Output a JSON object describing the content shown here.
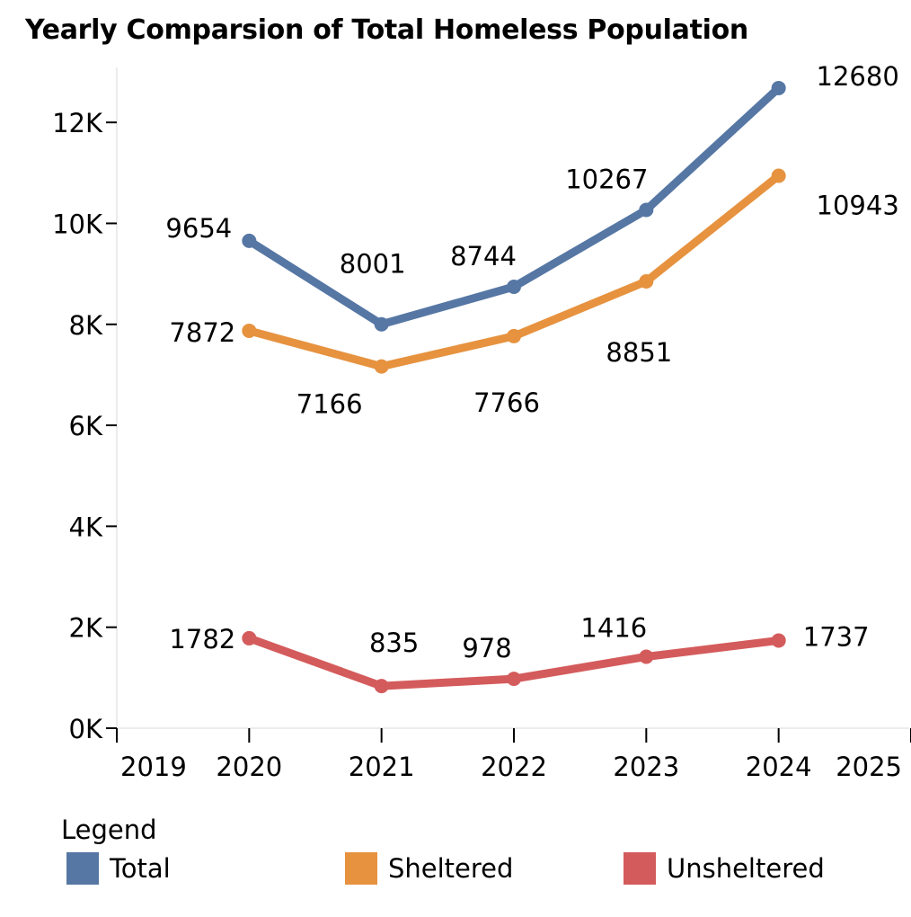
{
  "chart_data": {
    "type": "line",
    "title": "Yearly Comparsion of Total Homeless Population",
    "x": [
      2020,
      2021,
      2022,
      2023,
      2024
    ],
    "xlim": [
      2019,
      2025
    ],
    "xticks": [
      "2019",
      "2020",
      "2021",
      "2022",
      "2023",
      "2024",
      "2025"
    ],
    "ylim": [
      0,
      13000
    ],
    "yticks": [
      "0K",
      "2K",
      "4K",
      "6K",
      "8K",
      "10K",
      "12K"
    ],
    "grid": false,
    "legend_title": "Legend",
    "legend_position": "bottom",
    "series": [
      {
        "name": "Total",
        "color": "#5677a4",
        "values": [
          9654,
          8001,
          8744,
          10267,
          12680
        ]
      },
      {
        "name": "Sheltered",
        "color": "#e6923f",
        "values": [
          7872,
          7166,
          7766,
          8851,
          10943
        ]
      },
      {
        "name": "Unsheltered",
        "color": "#d45b5c",
        "values": [
          1782,
          835,
          978,
          1416,
          1737
        ]
      }
    ]
  }
}
